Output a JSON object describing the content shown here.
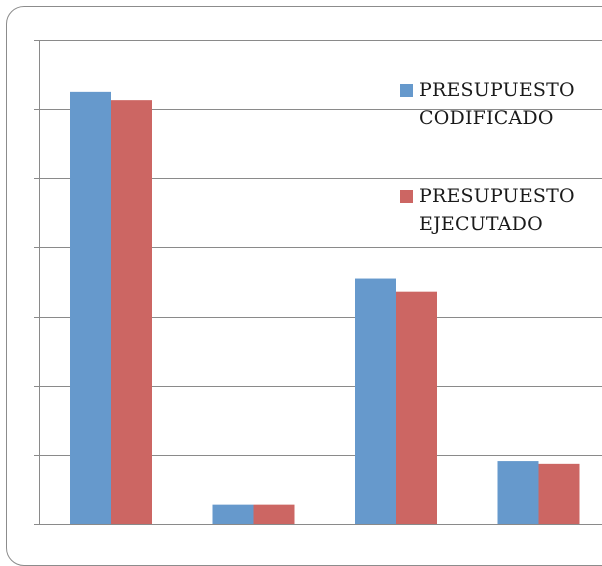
{
  "chart_data": {
    "type": "bar",
    "categories": [
      "",
      "",
      "",
      ""
    ],
    "series": [
      {
        "name": "PRESUPUESTO CODIFICADO",
        "color": "#6699cc",
        "values": [
          6.25,
          0.28,
          3.55,
          0.91
        ]
      },
      {
        "name": "PRESUPUESTO EJECUTADO",
        "color": "#cc6663",
        "values": [
          6.13,
          0.28,
          3.36,
          0.87
        ]
      }
    ],
    "ylim": [
      0,
      7
    ],
    "grid": true,
    "legend_position": "right",
    "title": "",
    "xlabel": "",
    "ylabel": ""
  }
}
